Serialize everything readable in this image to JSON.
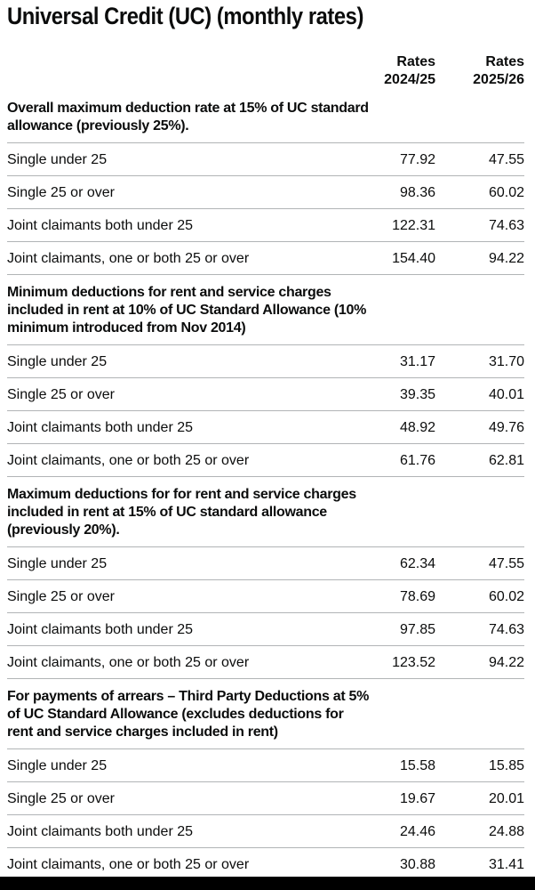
{
  "page": {
    "title": "Universal Credit (UC) (monthly rates)"
  },
  "colors": {
    "text": "#0b0c0c",
    "row_border": "#b1b4b6",
    "footer_bar": "#000000",
    "background": "#ffffff"
  },
  "table": {
    "column_headers": {
      "rates_2024_25": {
        "line1": "Rates",
        "line2": "2024/25"
      },
      "rates_2025_26": {
        "line1": "Rates",
        "line2": "2025/26"
      }
    },
    "sections": [
      {
        "heading": "Overall maximum deduction rate at 15% of UC standard allowance (previously 25%).",
        "heading_lines": [
          "Overall maximum deduction rate at 15% of UC standard",
          "allowance (previously 25%)."
        ],
        "rows": [
          {
            "label": "Single under 25",
            "rate_2024_25": "77.92",
            "rate_2025_26": "47.55"
          },
          {
            "label": "Single 25 or over",
            "rate_2024_25": "98.36",
            "rate_2025_26": "60.02"
          },
          {
            "label": "Joint claimants both under 25",
            "rate_2024_25": "122.31",
            "rate_2025_26": "74.63"
          },
          {
            "label": "Joint claimants, one or both 25 or over",
            "rate_2024_25": "154.40",
            "rate_2025_26": "94.22"
          }
        ]
      },
      {
        "heading": "Minimum deductions for rent and service charges included in rent at 10% of UC Standard Allowance (10% minimum introduced from Nov 2014)",
        "heading_lines": [
          "Minimum deductions for rent and service charges",
          "included in rent at 10% of UC Standard Allowance (10%",
          "minimum introduced from Nov 2014)"
        ],
        "rows": [
          {
            "label": "Single under 25",
            "rate_2024_25": "31.17",
            "rate_2025_26": "31.70"
          },
          {
            "label": "Single 25 or over",
            "rate_2024_25": "39.35",
            "rate_2025_26": "40.01"
          },
          {
            "label": "Joint claimants both under 25",
            "rate_2024_25": "48.92",
            "rate_2025_26": "49.76"
          },
          {
            "label": "Joint claimants, one or both 25 or over",
            "rate_2024_25": "61.76",
            "rate_2025_26": "62.81"
          }
        ]
      },
      {
        "heading": "Maximum deductions for for rent and service charges included in rent at 15% of UC standard allowance (previously 20%).",
        "heading_lines": [
          "Maximum deductions for for rent and service charges",
          "included in rent at 15% of UC standard allowance",
          "(previously 20%)."
        ],
        "rows": [
          {
            "label": "Single under 25",
            "rate_2024_25": "62.34",
            "rate_2025_26": "47.55"
          },
          {
            "label": "Single 25 or over",
            "rate_2024_25": "78.69",
            "rate_2025_26": "60.02"
          },
          {
            "label": "Joint claimants both under 25",
            "rate_2024_25": "97.85",
            "rate_2025_26": "74.63"
          },
          {
            "label": "Joint claimants, one or both 25 or over",
            "rate_2024_25": "123.52",
            "rate_2025_26": "94.22"
          }
        ]
      },
      {
        "heading": "For payments of arrears – Third Party Deductions at 5% of UC Standard Allowance (excludes deductions for rent and service charges included in rent)",
        "heading_lines": [
          "For payments of arrears – Third Party Deductions at 5%",
          "of UC Standard Allowance (excludes deductions for",
          "rent and service charges included in rent)"
        ],
        "rows": [
          {
            "label": "Single under 25",
            "rate_2024_25": "15.58",
            "rate_2025_26": "15.85"
          },
          {
            "label": "Single 25 or over",
            "rate_2024_25": "19.67",
            "rate_2025_26": "20.01"
          },
          {
            "label": "Joint claimants both under 25",
            "rate_2024_25": "24.46",
            "rate_2025_26": "24.88"
          },
          {
            "label": "Joint claimants, one or both 25 or over",
            "rate_2024_25": "30.88",
            "rate_2025_26": "31.41"
          }
        ]
      }
    ]
  }
}
